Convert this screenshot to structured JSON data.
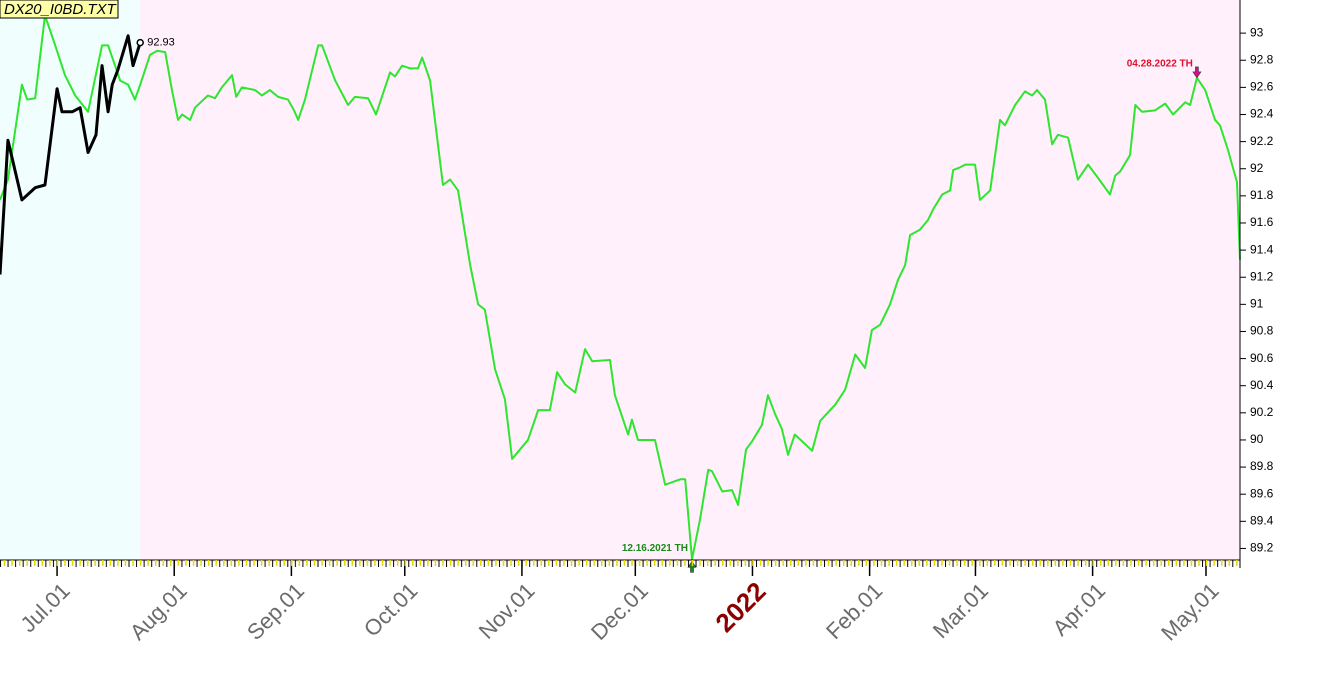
{
  "chart_data": {
    "type": "line",
    "title": "DX20_I0BD.TXT",
    "xlim": [
      -15.1,
      313.0
    ],
    "ylim": [
      89.1,
      93.2
    ],
    "xticks": [
      {
        "value": 0,
        "label": "Jul.01"
      },
      {
        "value": 31,
        "label": "Aug.01"
      },
      {
        "value": 62,
        "label": "Sep.01"
      },
      {
        "value": 92,
        "label": "Oct.01"
      },
      {
        "value": 123,
        "label": "Nov.01"
      },
      {
        "value": 153,
        "label": "Dec.01"
      },
      {
        "value": 184,
        "label": "2022",
        "color": "#8b0000"
      },
      {
        "value": 215,
        "label": "Feb.01"
      },
      {
        "value": 243,
        "label": "Mar.01"
      },
      {
        "value": 274,
        "label": "Apr.01"
      },
      {
        "value": 304,
        "label": "May.01"
      }
    ],
    "yticks": [
      89.2,
      89.4,
      89.6,
      89.8,
      90,
      90.2,
      90.4,
      90.6,
      90.8,
      91,
      91.2,
      91.4,
      91.6,
      91.8,
      92,
      92.2,
      92.4,
      92.6,
      92.8,
      93
    ],
    "series": [
      {
        "color": "#2ee62e",
        "x": [
          -15.1,
          -13.0,
          -9.3,
          -7.9,
          -5.8,
          -3.2,
          -0.5,
          2.1,
          4.8,
          8.2,
          11.9,
          13.5,
          16.7,
          18.8,
          20.6,
          22.0,
          24.6,
          26.5,
          28.6,
          30.4,
          32.0,
          33.1,
          35.2,
          36.5,
          39.9,
          41.8,
          43.6,
          46.3,
          47.4,
          48.9,
          52.4,
          54.2,
          56.3,
          58.5,
          61.1,
          62.7,
          63.8,
          65.6,
          69.1,
          70.1,
          73.6,
          77.0,
          78.8,
          82.3,
          84.4,
          88.1,
          89.4,
          91.3,
          93.4,
          95.5,
          96.6,
          98.7,
          102.1,
          104.0,
          106.1,
          109.3,
          111.4,
          113.2,
          115.9,
          118.5,
          120.4,
          122.5,
          124.6,
          127.3,
          130.4,
          132.3,
          134.4,
          137.1,
          139.7,
          141.6,
          146.3,
          147.6,
          151.1,
          152.1,
          153.7,
          158.2,
          160.9,
          164.9,
          166.2,
          168.0,
          170.1,
          172.3,
          173.3,
          176.0,
          178.6,
          180.2,
          182.3,
          183.9,
          186.5,
          188.1,
          190.0,
          191.8,
          193.4,
          195.2,
          197.9,
          199.8,
          201.9,
          205.9,
          208.5,
          211.2,
          213.8,
          215.6,
          217.8,
          220.4,
          222.5,
          224.4,
          225.7,
          228.3,
          230.4,
          231.8,
          234.2,
          236.3,
          237.1,
          238.9,
          240.3,
          242.9,
          244.2,
          246.9,
          249.5,
          250.8,
          253.5,
          256.1,
          258.0,
          259.3,
          261.4,
          263.3,
          264.8,
          267.5,
          270.1,
          272.8,
          275.5,
          278.6,
          280.0,
          281.3,
          283.9,
          285.3,
          287.1,
          290.5,
          293.2,
          295.3,
          298.5,
          299.8,
          301.6,
          303.8,
          306.4,
          307.7,
          309.8,
          312.2,
          313.0
        ],
        "values": [
          91.77,
          91.92,
          92.62,
          92.51,
          92.52,
          93.13,
          92.91,
          92.69,
          92.54,
          92.42,
          92.91,
          92.91,
          92.65,
          92.62,
          92.51,
          92.62,
          92.84,
          92.87,
          92.86,
          92.58,
          92.36,
          92.4,
          92.36,
          92.45,
          92.54,
          92.52,
          92.6,
          92.69,
          92.53,
          92.6,
          92.58,
          92.54,
          92.58,
          92.53,
          92.51,
          92.43,
          92.36,
          92.51,
          92.91,
          92.91,
          92.65,
          92.47,
          92.53,
          92.52,
          92.4,
          92.71,
          92.68,
          92.76,
          92.74,
          92.74,
          92.82,
          92.65,
          91.88,
          91.92,
          91.84,
          91.29,
          91.0,
          90.96,
          90.52,
          90.3,
          89.86,
          89.93,
          90.0,
          90.22,
          90.22,
          90.5,
          90.41,
          90.35,
          90.67,
          90.58,
          90.59,
          90.33,
          90.04,
          90.15,
          90.0,
          90.0,
          89.67,
          89.71,
          89.71,
          89.12,
          89.41,
          89.78,
          89.77,
          89.62,
          89.63,
          89.52,
          89.93,
          89.99,
          90.11,
          90.33,
          90.19,
          90.08,
          89.89,
          90.04,
          89.97,
          89.92,
          90.14,
          90.26,
          90.37,
          90.63,
          90.53,
          90.81,
          90.85,
          91.0,
          91.18,
          91.29,
          91.51,
          91.55,
          91.62,
          91.7,
          91.81,
          91.84,
          91.99,
          92.01,
          92.03,
          92.03,
          91.77,
          91.84,
          92.36,
          92.32,
          92.47,
          92.57,
          92.54,
          92.58,
          92.51,
          92.18,
          92.25,
          92.23,
          91.92,
          92.03,
          91.93,
          91.81,
          91.95,
          91.98,
          92.1,
          92.47,
          92.42,
          92.43,
          92.48,
          92.4,
          92.49,
          92.47,
          92.67,
          92.58,
          92.36,
          92.32,
          92.14,
          91.9,
          91.33
        ]
      },
      {
        "color": "#000000",
        "x": [
          -15.1,
          -13.0,
          -9.3,
          -5.8,
          -3.2,
          0,
          1.3,
          4.0,
          6.1,
          8.2,
          10.3,
          11.9,
          13.5,
          14.6,
          16.1,
          18.8,
          20.1,
          22.0
        ],
        "values": [
          91.22,
          92.21,
          91.77,
          91.86,
          91.88,
          92.59,
          92.42,
          92.42,
          92.45,
          92.12,
          92.25,
          92.76,
          92.42,
          92.62,
          92.73,
          92.98,
          92.76,
          92.93
        ]
      }
    ],
    "annotations": [
      {
        "text": "12.16.2021 TH",
        "x": 168.0,
        "y": 89.12,
        "color": "#1a8a1a"
      },
      {
        "text": "04.28.2022 TH",
        "x": 301.6,
        "y": 92.67,
        "color": "#e0102a"
      }
    ]
  }
}
